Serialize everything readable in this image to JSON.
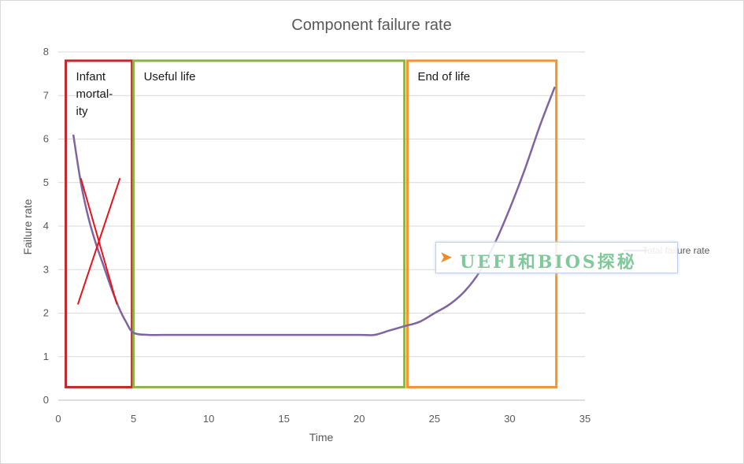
{
  "chart_data": {
    "type": "line",
    "title": "Component failure rate",
    "xlabel": "Time",
    "ylabel": "Failure rate",
    "xlim": [
      0,
      35
    ],
    "ylim": [
      0,
      8
    ],
    "x_ticks": [
      0,
      5,
      10,
      15,
      20,
      25,
      30,
      35
    ],
    "y_ticks": [
      0,
      1,
      2,
      3,
      4,
      5,
      6,
      7,
      8
    ],
    "grid": "horizontal",
    "legend_position": "right",
    "series": [
      {
        "name": "Total failure rate",
        "color": "#8064a2",
        "x": [
          1,
          1.5,
          2,
          2.5,
          3,
          3.5,
          4,
          4.5,
          5,
          6,
          7,
          10,
          15,
          20,
          21,
          22,
          23,
          24,
          25,
          26,
          27,
          28,
          29,
          30,
          31,
          32,
          33
        ],
        "y": [
          6.1,
          5.0,
          4.2,
          3.6,
          3.1,
          2.6,
          2.15,
          1.8,
          1.55,
          1.5,
          1.5,
          1.5,
          1.5,
          1.5,
          1.5,
          1.6,
          1.7,
          1.8,
          2.0,
          2.2,
          2.5,
          2.95,
          3.6,
          4.4,
          5.3,
          6.3,
          7.2
        ]
      }
    ],
    "regions": [
      {
        "label": "Infant mortal-ity",
        "lines": [
          "Infant",
          "mortal-",
          "ity"
        ],
        "x": [
          0.5,
          4.9
        ],
        "y": [
          0.3,
          7.8
        ],
        "color": "#c0282d"
      },
      {
        "label": "Useful life",
        "lines": [
          "Useful life"
        ],
        "x": [
          5.0,
          23.0
        ],
        "y": [
          0.3,
          7.8
        ],
        "color": "#8cb24a"
      },
      {
        "label": "End of life",
        "lines": [
          "End of life"
        ],
        "x": [
          23.2,
          33.1
        ],
        "y": [
          0.3,
          7.8
        ],
        "color": "#f39332"
      }
    ],
    "annotations": [
      {
        "type": "cross",
        "color": "#e8141b",
        "x": [
          1.3,
          4.1
        ],
        "y": [
          2.2,
          5.1
        ]
      }
    ]
  },
  "watermark": {
    "text": "UEFI和BIOS探秘",
    "icon": "rocket-icon"
  }
}
